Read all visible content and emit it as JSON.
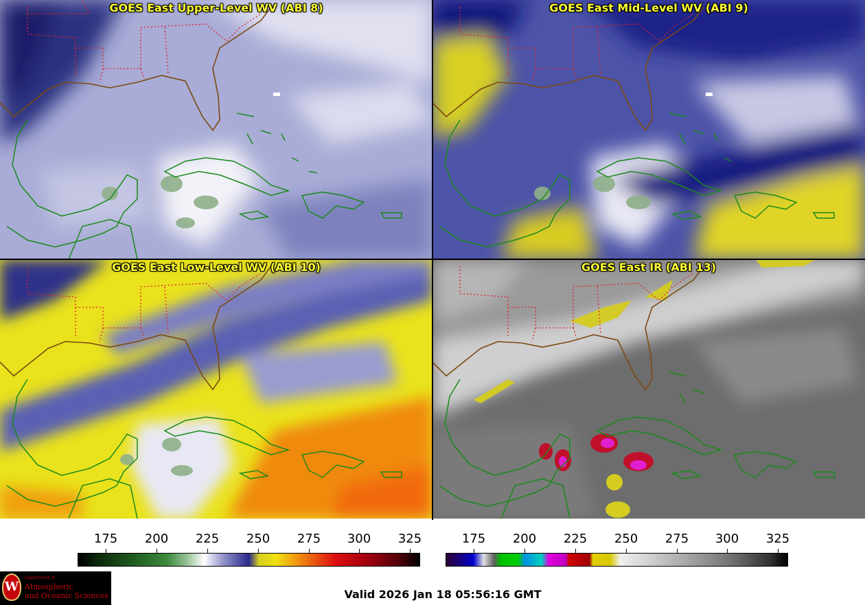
{
  "panels": [
    {
      "title": "GOES East Upper-Level WV (ABI 8)",
      "base": "#a9acd6",
      "light": "#e8e8f4",
      "dark": "#2a3180",
      "deep": "#1a1f6a"
    },
    {
      "title": "GOES East Mid-Level WV (ABI 9)",
      "base": "#4d54a8",
      "light": "#dcdcee",
      "dark": "#10147a",
      "warm": "#d8d020"
    },
    {
      "title": "GOES East Low-Level WV (ABI 10)",
      "base": "#e9e21c",
      "light": "#f2f2f8",
      "dark": "#2d3388",
      "warm": "#f08a10"
    },
    {
      "title": "GOES East IR (ABI 13)",
      "base": "#6d6d6d",
      "light": "#e8e8e8",
      "dark": "#4a4a4a",
      "cold": "#d4cc20"
    }
  ],
  "colorbars": [
    {
      "name": "wv-colorbar",
      "ticks": [
        "175",
        "200",
        "225",
        "250",
        "275",
        "300",
        "325"
      ]
    },
    {
      "name": "ir-colorbar",
      "ticks": [
        "175",
        "200",
        "225",
        "250",
        "275",
        "300",
        "325"
      ]
    }
  ],
  "colors": {
    "states": "#e0202a",
    "coast_us": "#7a4a10",
    "coast_intl": "#1a8a1a",
    "title": "#ffff33"
  },
  "logo": {
    "small": "Department of",
    "line1": "Atmospheric",
    "line2": "and Oceanic Sciences",
    "emblem": "W"
  },
  "valid_time": "Valid 2026 Jan 18 05:56:16 GMT"
}
